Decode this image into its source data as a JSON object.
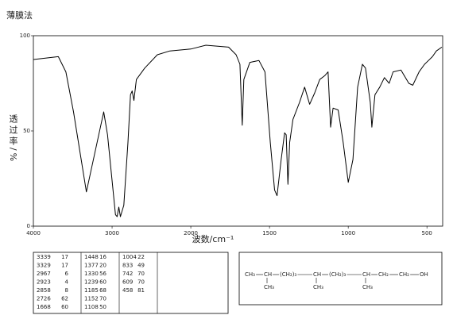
{
  "chart_data": {
    "type": "line",
    "title": "薄膜法",
    "xlabel": "波数/cm⁻¹",
    "ylabel": "透过率/%",
    "x": [
      4000,
      3683,
      3587,
      3490,
      3327,
      3106,
      3058,
      2957,
      2936,
      2915,
      2894,
      2851,
      2798,
      2766,
      2745,
      2723,
      2691,
      2585,
      2425,
      2266,
      2000,
      1904,
      1760,
      1712,
      1688,
      1673,
      1663,
      1625,
      1567,
      1529,
      1495,
      1468,
      1452,
      1426,
      1404,
      1394,
      1383,
      1372,
      1351,
      1309,
      1277,
      1245,
      1213,
      1181,
      1149,
      1128,
      1112,
      1096,
      1064,
      1032,
      1000,
      970,
      940,
      910,
      890,
      860,
      850,
      830,
      800,
      770,
      740,
      715,
      665,
      615,
      590,
      550,
      515,
      490,
      465,
      440,
      405
    ],
    "series": [
      {
        "name": "spectrum",
        "color": "#000000",
        "values": [
          87.5,
          89,
          81,
          60,
          18,
          60,
          48,
          6,
          5,
          10,
          5,
          11,
          44,
          69,
          71,
          66,
          77,
          83,
          90,
          92,
          93,
          95,
          94,
          90,
          85,
          53,
          77,
          86,
          87,
          81,
          44,
          19,
          16,
          35,
          49,
          48,
          22,
          44,
          56,
          65,
          73,
          64,
          70,
          77,
          79,
          81,
          52,
          62,
          61,
          44,
          23,
          35,
          73,
          85,
          83,
          65,
          52,
          69,
          73,
          78,
          75,
          81,
          82,
          75,
          74,
          81,
          85,
          87,
          89,
          92,
          94
        ]
      }
    ],
    "xlim": [
      4000,
      400
    ],
    "xticks": [
      4000,
      3000,
      2000,
      1500,
      1000,
      500
    ],
    "ylim": [
      0,
      100
    ],
    "yticks": [
      0,
      50,
      100
    ]
  },
  "peak_table": [
    [
      [
        3339,
        17
      ],
      [
        3329,
        17
      ],
      [
        2967,
        6
      ],
      [
        2923,
        4
      ],
      [
        2858,
        8
      ],
      [
        2726,
        62
      ],
      [
        1668,
        60
      ]
    ],
    [
      [
        1448,
        16
      ],
      [
        1377,
        20
      ],
      [
        1330,
        56
      ],
      [
        1239,
        60
      ],
      [
        1185,
        68
      ],
      [
        1152,
        70
      ],
      [
        1108,
        50
      ]
    ],
    [
      [
        1004,
        22
      ],
      [
        833,
        49
      ],
      [
        742,
        70
      ],
      [
        609,
        70
      ],
      [
        458,
        81
      ]
    ]
  ],
  "structure": {
    "chain": [
      "CH₃",
      "CH",
      "(CH₂)₃",
      "CH",
      "(CH₂)₃",
      "CH",
      "CH₂",
      "CH₂",
      "OH"
    ],
    "branches": [
      "CH₃",
      "CH₃",
      "CH₃"
    ]
  }
}
